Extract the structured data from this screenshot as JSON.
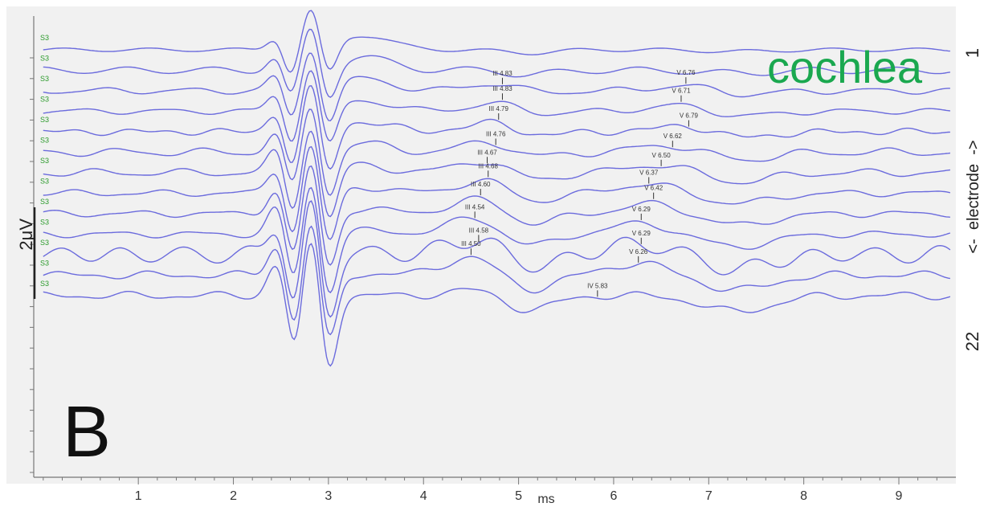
{
  "chart_data": {
    "type": "line",
    "panel_label": "B",
    "annotation": "cochlea",
    "xlabel": "ms",
    "xlim": [
      -0.1,
      9.6
    ],
    "xticks": [
      1,
      2,
      3,
      4,
      5,
      6,
      7,
      8,
      9
    ],
    "scale_bar_label": "2μV",
    "scale_bar_uv": 2,
    "right_axis_label": "<-  electrode  ->",
    "electrode_top": "1",
    "electrode_bottom": "22",
    "trace_tag": "S3",
    "n_traces": 13,
    "peaks": [
      {
        "label": "III 4.83",
        "trace": 2,
        "x": 4.83
      },
      {
        "label": "III 4.83",
        "trace": 3,
        "x": 4.83
      },
      {
        "label": "III 4.79",
        "trace": 4,
        "x": 4.79
      },
      {
        "label": "III 4.76",
        "trace": 5,
        "x": 4.76
      },
      {
        "label": "III 4.67",
        "trace": 6,
        "x": 4.67
      },
      {
        "label": "III 4.68",
        "trace": 7,
        "x": 4.68
      },
      {
        "label": "III 4.60",
        "trace": 8,
        "x": 4.6
      },
      {
        "label": "III 4.54",
        "trace": 9,
        "x": 4.54
      },
      {
        "label": "III 4.58",
        "trace": 10,
        "x": 4.58
      },
      {
        "label": "III 4.50",
        "trace": 11,
        "x": 4.5
      },
      {
        "label": "V 6.76",
        "trace": 2,
        "x": 6.76
      },
      {
        "label": "V 6.71",
        "trace": 3,
        "x": 6.71
      },
      {
        "label": "V 6.79",
        "trace": 4,
        "x": 6.79
      },
      {
        "label": "V 6.62",
        "trace": 5,
        "x": 6.62
      },
      {
        "label": "V 6.50",
        "trace": 6,
        "x": 6.5
      },
      {
        "label": "V 6.37",
        "trace": 7,
        "x": 6.37
      },
      {
        "label": "V 6.42",
        "trace": 8,
        "x": 6.42
      },
      {
        "label": "V 6.29",
        "trace": 9,
        "x": 6.29
      },
      {
        "label": "V 6.29",
        "trace": 10,
        "x": 6.29
      },
      {
        "label": "V 6.26",
        "trace": 11,
        "x": 6.26
      },
      {
        "label": "IV 5.83",
        "trace": 12,
        "x": 5.83
      }
    ],
    "colors": {
      "trace": "#6b6bdd",
      "tag": "#2a9a2a",
      "annotation": "#1aa84f",
      "axis": "#555555",
      "background": "#f1f1f1"
    }
  }
}
